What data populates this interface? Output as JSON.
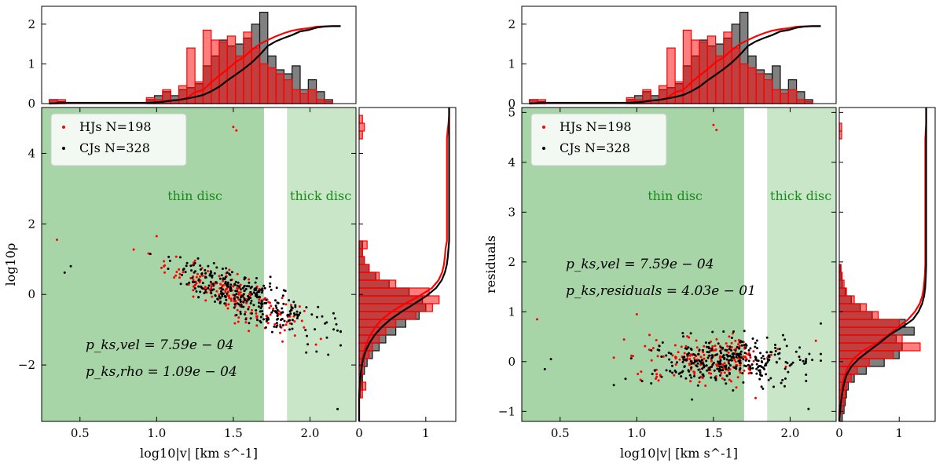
{
  "chart_data": [
    {
      "type": "scatter",
      "title": "",
      "xlabel": "log10|v| [km s^-1]",
      "ylabel": "log10ρ",
      "xlim": [
        0.25,
        2.3
      ],
      "ylim": [
        -3.6,
        5.3
      ],
      "xticks": [
        0.5,
        1.0,
        1.5,
        2.0
      ],
      "xtick_labels": [
        "0.5",
        "1.0",
        "1.5",
        "2.0"
      ],
      "yticks": [
        -2,
        0,
        2,
        4
      ],
      "ytick_labels": [
        "−2",
        "0",
        "2",
        "4"
      ],
      "regions": [
        {
          "name": "thin disc",
          "x_range": [
            0.25,
            1.7
          ],
          "color": "#a8d5a8"
        },
        {
          "name": "thick disc",
          "x_range": [
            1.85,
            2.3
          ],
          "color": "#c9e6c9"
        }
      ],
      "region_labels": [
        "thin disc",
        "thick disc"
      ],
      "legend": [
        {
          "label": "HJs N=198",
          "color": "#ff0000"
        },
        {
          "label": "CJs N=328",
          "color": "#000000"
        }
      ],
      "legend_position": "upper-left",
      "annotations": [
        "p_ks,vel = 7.59e − 04",
        "p_ks,rho = 1.09e − 04"
      ],
      "series": [
        {
          "name": "HJs",
          "n": 198,
          "color": "#ff0000",
          "trend": {
            "x_mean": 1.5,
            "x_sd": 0.22,
            "slope": -1.8,
            "intercept": 2.7,
            "scatter": 0.28
          },
          "outliers": [
            [
              0.35,
              1.55
            ],
            [
              1.0,
              1.65
            ],
            [
              1.5,
              4.75
            ],
            [
              1.52,
              4.65
            ]
          ]
        },
        {
          "name": "CJs",
          "n": 328,
          "color": "#000000",
          "trend": {
            "x_mean": 1.58,
            "x_sd": 0.25,
            "slope": -1.85,
            "intercept": 2.85,
            "scatter": 0.3
          },
          "outliers": [
            [
              0.4,
              0.62
            ],
            [
              0.44,
              0.8
            ],
            [
              2.18,
              -3.25
            ]
          ]
        }
      ],
      "top_hist": {
        "yticks": [
          0,
          1,
          2
        ],
        "ylim": [
          0,
          2.45
        ],
        "bin_edges": [
          0.3,
          2.2
        ],
        "bins": 36,
        "hj_counts": [
          0.1,
          0.1,
          0,
          0,
          0,
          0,
          0,
          0,
          0,
          0,
          0,
          0,
          0.15,
          0.1,
          0.35,
          0.1,
          0.45,
          1.4,
          0.55,
          1.85,
          1.6,
          1.55,
          1.7,
          1.2,
          1.8,
          1.4,
          1.0,
          0.9,
          0.75,
          0.6,
          0.35,
          0.25,
          0.35,
          0.1,
          0.05,
          0
        ],
        "cj_counts": [
          0.1,
          0.05,
          0,
          0,
          0,
          0,
          0,
          0,
          0,
          0,
          0,
          0,
          0.1,
          0.2,
          0.3,
          0.2,
          0.35,
          0.4,
          0.5,
          0.95,
          1.2,
          1.6,
          1.45,
          1.5,
          1.65,
          2.0,
          2.3,
          1.2,
          0.85,
          0.75,
          0.95,
          0.35,
          0.6,
          0.3,
          0.1,
          0
        ],
        "cdf_ymax": 1.95
      },
      "right_hist": {
        "xticks": [
          0,
          1
        ],
        "xlim": [
          0,
          1.45
        ],
        "bin_edges": [
          -3.6,
          5.3
        ],
        "bins": 40,
        "hj_counts": [
          0,
          0,
          0,
          0.05,
          0.1,
          0,
          0.05,
          0.08,
          0.15,
          0.2,
          0.3,
          0.4,
          0.55,
          0.85,
          1.1,
          1.2,
          1.05,
          0.55,
          0.3,
          0.15,
          0.08,
          0.05,
          0.12,
          0,
          0,
          0,
          0,
          0,
          0,
          0,
          0,
          0,
          0,
          0,
          0,
          0,
          0.05,
          0.08,
          0.05,
          0
        ],
        "cj_counts": [
          0,
          0,
          0,
          0.02,
          0.05,
          0.05,
          0.08,
          0.12,
          0.2,
          0.3,
          0.4,
          0.55,
          0.7,
          0.9,
          1.0,
          0.95,
          0.75,
          0.45,
          0.25,
          0.15,
          0.08,
          0.05,
          0.05,
          0,
          0,
          0,
          0,
          0,
          0,
          0,
          0,
          0,
          0,
          0,
          0,
          0,
          0,
          0,
          0,
          0
        ],
        "cdf_xmax": 1.35
      }
    },
    {
      "type": "scatter",
      "title": "",
      "xlabel": "log10|v| [km s^-1]",
      "ylabel": "residuals",
      "xlim": [
        0.25,
        2.3
      ],
      "ylim": [
        -1.2,
        5.1
      ],
      "xticks": [
        0.5,
        1.0,
        1.5,
        2.0
      ],
      "xtick_labels": [
        "0.5",
        "1.0",
        "1.5",
        "2.0"
      ],
      "yticks": [
        -1,
        0,
        1,
        2,
        3,
        4,
        5
      ],
      "ytick_labels": [
        "−1",
        "0",
        "1",
        "2",
        "3",
        "4",
        "5"
      ],
      "regions": [
        {
          "name": "thin disc",
          "x_range": [
            0.25,
            1.7
          ],
          "color": "#a8d5a8"
        },
        {
          "name": "thick disc",
          "x_range": [
            1.85,
            2.3
          ],
          "color": "#c9e6c9"
        }
      ],
      "region_labels": [
        "thin disc",
        "thick disc"
      ],
      "legend": [
        {
          "label": "HJs N=198",
          "color": "#ff0000"
        },
        {
          "label": "CJs N=328",
          "color": "#000000"
        }
      ],
      "legend_position": "upper-left",
      "annotations": [
        "p_ks,vel = 7.59e − 04",
        "p_ks,residuals = 4.03e − 01"
      ],
      "series": [
        {
          "name": "HJs",
          "n": 198,
          "color": "#ff0000",
          "trend": {
            "x_mean": 1.5,
            "x_sd": 0.22,
            "slope": 0,
            "intercept": 0.05,
            "scatter": 0.22
          },
          "outliers": [
            [
              0.35,
              0.85
            ],
            [
              1.0,
              0.95
            ],
            [
              1.5,
              4.75
            ],
            [
              1.52,
              4.65
            ]
          ]
        },
        {
          "name": "CJs",
          "n": 328,
          "color": "#000000",
          "trend": {
            "x_mean": 1.58,
            "x_sd": 0.25,
            "slope": 0,
            "intercept": 0.02,
            "scatter": 0.23
          },
          "outliers": [
            [
              0.4,
              -0.15
            ],
            [
              0.44,
              0.05
            ],
            [
              2.12,
              -0.95
            ]
          ]
        }
      ],
      "top_hist": {
        "yticks": [
          0,
          1,
          2
        ],
        "ylim": [
          0,
          2.45
        ],
        "bin_edges": [
          0.3,
          2.2
        ],
        "bins": 36,
        "hj_counts": [
          0.1,
          0.1,
          0,
          0,
          0,
          0,
          0,
          0,
          0,
          0,
          0,
          0,
          0.15,
          0.1,
          0.35,
          0.1,
          0.45,
          1.4,
          0.55,
          1.85,
          1.6,
          1.55,
          1.7,
          1.2,
          1.8,
          1.4,
          1.0,
          0.9,
          0.75,
          0.6,
          0.35,
          0.25,
          0.35,
          0.1,
          0.05,
          0
        ],
        "cj_counts": [
          0.1,
          0.05,
          0,
          0,
          0,
          0,
          0,
          0,
          0,
          0,
          0,
          0,
          0.1,
          0.2,
          0.3,
          0.2,
          0.35,
          0.4,
          0.5,
          0.95,
          1.2,
          1.6,
          1.45,
          1.5,
          1.65,
          2.0,
          2.3,
          1.2,
          0.85,
          0.75,
          0.95,
          0.35,
          0.6,
          0.3,
          0.1,
          0
        ],
        "cdf_ymax": 1.95
      },
      "right_hist": {
        "xticks": [
          0,
          1
        ],
        "xlim": [
          0,
          1.6
        ],
        "bin_edges": [
          -1.2,
          5.1
        ],
        "bins": 40,
        "hj_counts": [
          0,
          0.05,
          0.08,
          0.1,
          0.12,
          0.2,
          0.3,
          0.5,
          0.9,
          1.35,
          1.05,
          0.9,
          1.0,
          0.65,
          0.45,
          0.25,
          0.12,
          0.08,
          0.05,
          0.03,
          0,
          0,
          0,
          0,
          0,
          0,
          0,
          0,
          0,
          0,
          0,
          0,
          0,
          0,
          0,
          0,
          0.04,
          0.04,
          0,
          0
        ],
        "cj_counts": [
          0.05,
          0.08,
          0.1,
          0.12,
          0.15,
          0.25,
          0.45,
          0.75,
          1.0,
          1.05,
          0.95,
          1.25,
          1.1,
          0.55,
          0.35,
          0.2,
          0.1,
          0.05,
          0.03,
          0.02,
          0,
          0,
          0,
          0,
          0,
          0,
          0,
          0,
          0,
          0,
          0,
          0,
          0,
          0,
          0,
          0,
          0,
          0,
          0,
          0
        ],
        "cdf_xmax": 1.45
      }
    }
  ],
  "labels": {
    "thin_disc": "thin disc",
    "thick_disc": "thick disc",
    "xlabel": "log10|v| [km s^-1]",
    "ylabel_left": "log10ρ",
    "ylabel_right": "residuals"
  }
}
